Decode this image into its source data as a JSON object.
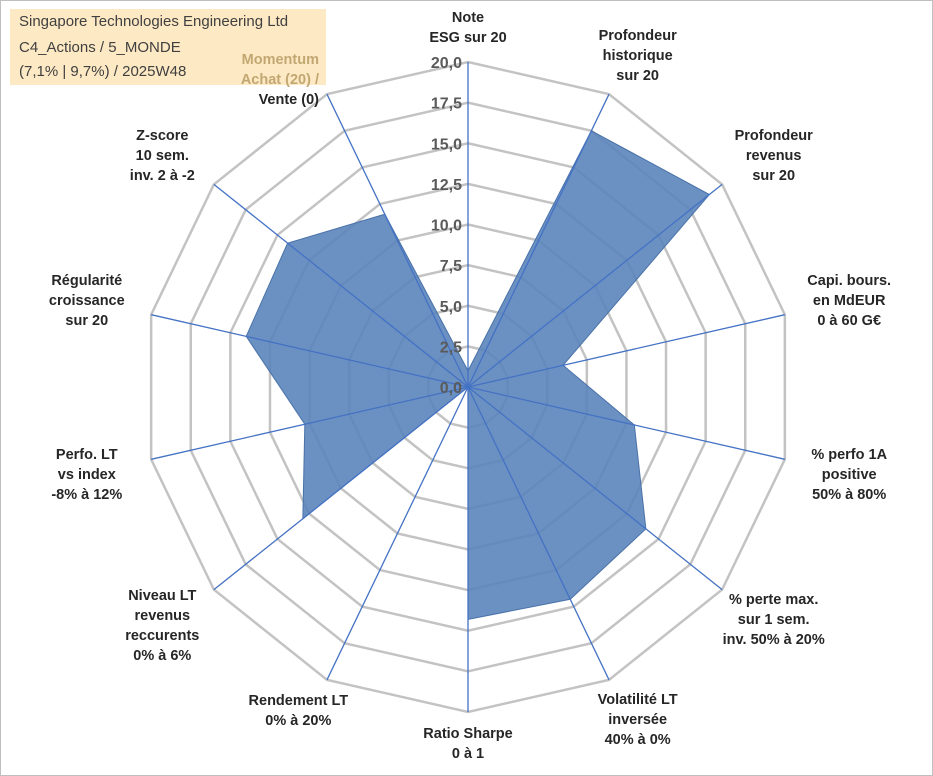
{
  "info_box": {
    "line1": "Singapore Technologies Engineering Ltd",
    "line2": "C4_Actions / 5_MONDE",
    "line3": "(7,1% | 9,7%) / 2025W48"
  },
  "colors": {
    "series_fill": "#5b84bb",
    "series_stroke": "#4a72a8",
    "spokes": "#4472c4",
    "rings": "#c3c3c3",
    "info_bg": "#fde9c4",
    "momentum_text": "#c2a772"
  },
  "chart_data": {
    "type": "radar",
    "title": "",
    "scale": {
      "min": 0,
      "max": 20,
      "step": 2.5
    },
    "tick_labels": [
      "0,0",
      "2,5",
      "5,0",
      "7,5",
      "10,0",
      "12,5",
      "15,0",
      "17,5",
      "20,0"
    ],
    "axes": [
      {
        "lines": [
          "Note",
          "ESG sur 20"
        ]
      },
      {
        "lines": [
          "Profondeur",
          "historique",
          "sur 20"
        ]
      },
      {
        "lines": [
          "Profondeur",
          "revenus",
          "sur 20"
        ]
      },
      {
        "lines": [
          "Capi. bours.",
          "en MdEUR",
          "0 à 60 G€"
        ]
      },
      {
        "lines": [
          "% perfo 1A",
          "positive",
          "50% à 80%"
        ]
      },
      {
        "lines": [
          "% perte max.",
          "sur 1 sem.",
          "inv. 50% à 20%"
        ]
      },
      {
        "lines": [
          "Volatilité LT",
          "inversée",
          "40% à 0%"
        ]
      },
      {
        "lines": [
          "Ratio Sharpe",
          "0 à 1"
        ]
      },
      {
        "lines": [
          "Rendement LT",
          "0% à 20%"
        ]
      },
      {
        "lines": [
          "Niveau LT",
          "revenus",
          "reccurents",
          "0% à 6%"
        ]
      },
      {
        "lines": [
          "Perfo. LT",
          "vs index",
          "-8% à 12%"
        ]
      },
      {
        "lines": [
          "Régularité",
          "croissance",
          "sur 20"
        ]
      },
      {
        "lines": [
          "Z-score",
          "10 sem.",
          "inv. 2 à -2"
        ]
      },
      {
        "lines": [
          "Momentum",
          "Achat (20) /",
          "Vente (0)"
        ]
      }
    ],
    "series": [
      {
        "name": "Singapore Technologies Engineering Ltd",
        "values": [
          1.0,
          17.5,
          19.0,
          6.0,
          10.5,
          14.0,
          14.5,
          14.3,
          0.0,
          13.0,
          10.3,
          14.0,
          14.2,
          11.8
        ]
      }
    ]
  }
}
